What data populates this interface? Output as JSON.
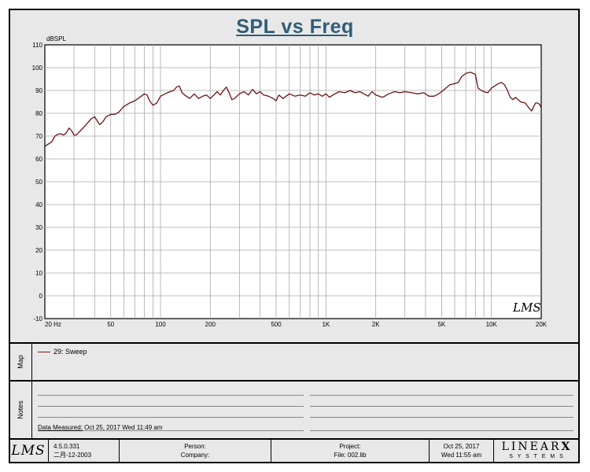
{
  "chart_data": {
    "type": "line",
    "title": "SPL vs Freq",
    "ylabel": "dBSPL",
    "xscale": "log",
    "xlim": [
      20,
      20000
    ],
    "ylim": [
      -10,
      110
    ],
    "y_ticks": [
      "-10",
      "0",
      "10",
      "20",
      "30",
      "40",
      "50",
      "60",
      "70",
      "80",
      "90",
      "100",
      "110"
    ],
    "x_ticks": [
      {
        "v": 20,
        "label": "20  Hz"
      },
      {
        "v": 50,
        "label": "50"
      },
      {
        "v": 100,
        "label": "100"
      },
      {
        "v": 200,
        "label": "200"
      },
      {
        "v": 500,
        "label": "500"
      },
      {
        "v": 1000,
        "label": "1K"
      },
      {
        "v": 2000,
        "label": "2K"
      },
      {
        "v": 5000,
        "label": "5K"
      },
      {
        "v": 10000,
        "label": "10K"
      },
      {
        "v": 20000,
        "label": "20K"
      }
    ],
    "grid": true,
    "series": [
      {
        "name": "29: Sweep",
        "color": "#6b1414",
        "points": [
          [
            20,
            65.5
          ],
          [
            21,
            66.5
          ],
          [
            22,
            67.5
          ],
          [
            23,
            70
          ],
          [
            24,
            70.8
          ],
          [
            25,
            71
          ],
          [
            26,
            70.5
          ],
          [
            27,
            71.5
          ],
          [
            28,
            73.5
          ],
          [
            29,
            72.5
          ],
          [
            30,
            70.5
          ],
          [
            31,
            70.5
          ],
          [
            32,
            71.5
          ],
          [
            34,
            73.5
          ],
          [
            36,
            75.5
          ],
          [
            38,
            77.5
          ],
          [
            40,
            78.5
          ],
          [
            42,
            76
          ],
          [
            43,
            75
          ],
          [
            45,
            76.5
          ],
          [
            47,
            78.5
          ],
          [
            50,
            79.5
          ],
          [
            53,
            79.5
          ],
          [
            56,
            80.5
          ],
          [
            60,
            83
          ],
          [
            65,
            84.5
          ],
          [
            70,
            85.5
          ],
          [
            75,
            87
          ],
          [
            80,
            88.5
          ],
          [
            83,
            88
          ],
          [
            86,
            85.5
          ],
          [
            90,
            83.5
          ],
          [
            95,
            84.5
          ],
          [
            100,
            87.5
          ],
          [
            110,
            89
          ],
          [
            120,
            90
          ],
          [
            125,
            91.5
          ],
          [
            130,
            92
          ],
          [
            135,
            89
          ],
          [
            140,
            88
          ],
          [
            150,
            86.5
          ],
          [
            160,
            88.5
          ],
          [
            170,
            86.5
          ],
          [
            180,
            87.5
          ],
          [
            190,
            88
          ],
          [
            200,
            86.5
          ],
          [
            210,
            88
          ],
          [
            220,
            89.5
          ],
          [
            230,
            88
          ],
          [
            240,
            90
          ],
          [
            250,
            91.5
          ],
          [
            260,
            89
          ],
          [
            270,
            86
          ],
          [
            280,
            86.5
          ],
          [
            300,
            88.5
          ],
          [
            320,
            89.5
          ],
          [
            340,
            88
          ],
          [
            360,
            90.5
          ],
          [
            380,
            88.5
          ],
          [
            400,
            89.5
          ],
          [
            420,
            88
          ],
          [
            450,
            87.5
          ],
          [
            480,
            86.5
          ],
          [
            500,
            85.5
          ],
          [
            520,
            88
          ],
          [
            550,
            86.5
          ],
          [
            600,
            88.5
          ],
          [
            650,
            87.5
          ],
          [
            700,
            88
          ],
          [
            750,
            87.5
          ],
          [
            800,
            89
          ],
          [
            850,
            88
          ],
          [
            900,
            88.5
          ],
          [
            950,
            87.5
          ],
          [
            1000,
            88.5
          ],
          [
            1050,
            87
          ],
          [
            1100,
            88
          ],
          [
            1200,
            89.5
          ],
          [
            1300,
            89
          ],
          [
            1400,
            90
          ],
          [
            1500,
            89
          ],
          [
            1600,
            89.5
          ],
          [
            1700,
            88.5
          ],
          [
            1800,
            87.5
          ],
          [
            1900,
            89.5
          ],
          [
            2000,
            88
          ],
          [
            2200,
            87
          ],
          [
            2400,
            88.5
          ],
          [
            2600,
            89.5
          ],
          [
            2800,
            89
          ],
          [
            3000,
            89.5
          ],
          [
            3300,
            89
          ],
          [
            3600,
            88.5
          ],
          [
            3900,
            89
          ],
          [
            4200,
            87.5
          ],
          [
            4500,
            87.5
          ],
          [
            4800,
            88.5
          ],
          [
            5000,
            89.5
          ],
          [
            5300,
            91
          ],
          [
            5600,
            92.5
          ],
          [
            6000,
            93
          ],
          [
            6300,
            93.5
          ],
          [
            6600,
            96
          ],
          [
            7000,
            97.5
          ],
          [
            7500,
            98
          ],
          [
            8000,
            97
          ],
          [
            8300,
            91
          ],
          [
            8700,
            90
          ],
          [
            9000,
            89.5
          ],
          [
            9500,
            89
          ],
          [
            10000,
            91
          ],
          [
            10500,
            92
          ],
          [
            11000,
            93
          ],
          [
            11500,
            93.5
          ],
          [
            12000,
            92.5
          ],
          [
            12500,
            90
          ],
          [
            13000,
            87
          ],
          [
            13500,
            86
          ],
          [
            14000,
            87
          ],
          [
            15000,
            85
          ],
          [
            16000,
            84.5
          ],
          [
            17000,
            82
          ],
          [
            17500,
            81
          ],
          [
            18000,
            83
          ],
          [
            18500,
            84.5
          ],
          [
            19000,
            84.5
          ],
          [
            19500,
            84
          ],
          [
            20000,
            82.5
          ]
        ]
      }
    ]
  },
  "map": {
    "label": "Map"
  },
  "notes": {
    "label": "Notes",
    "data_measured_label": "Data Measured:",
    "data_measured_value": "Oct 25, 2017  Wed 11:49 am"
  },
  "footer": {
    "logo_text": "LMS",
    "version": "4.5.0.331",
    "build_date": "二月-12-2003",
    "person_label": "Person:",
    "company_label": "Company:",
    "project_label": "Project:",
    "file_label": "File: 002.lib",
    "date": "Oct 25, 2017",
    "time": "Wed 11:55 am",
    "brand_main": "LINEAR",
    "brand_x": "X",
    "brand_sub": "S Y S T E M S"
  },
  "watermark": "LMS"
}
